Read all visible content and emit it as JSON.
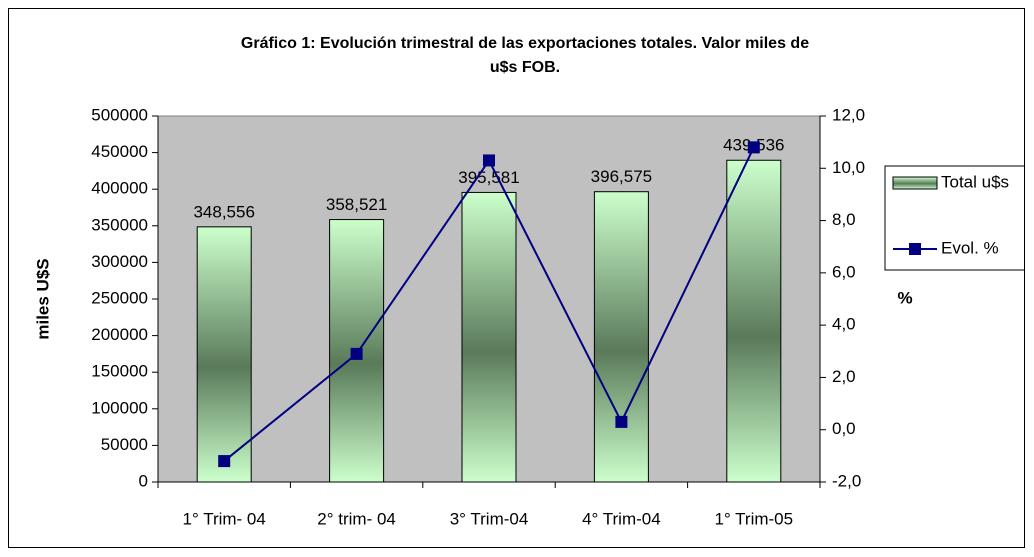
{
  "chart_data": {
    "type": "bar_line",
    "title": [
      "Gráfico 1: Evolución trimestral de las exportaciones totales. Valor miles de",
      "u$s FOB."
    ],
    "categories": [
      "1° Trim- 04",
      "2° trim- 04",
      "3° Trim-04",
      "4° Trim-04",
      "1° Trim-05"
    ],
    "series": [
      {
        "name": "Total u$s",
        "type": "bar",
        "color": "#ccffcc",
        "values": [
          348556,
          358521,
          395581,
          396575,
          439536
        ],
        "value_labels": [
          "348,556",
          "358,521",
          "395,581",
          "396,575",
          "439,536"
        ]
      },
      {
        "name": "Evol. %",
        "type": "line",
        "axis": "y2",
        "color": "#000080",
        "values": [
          -1.2,
          2.9,
          10.3,
          0.3,
          10.8
        ]
      }
    ],
    "ylabel": "miles U$S",
    "y2label": "%",
    "ylim": [
      0,
      500000
    ],
    "yticks": [
      0,
      50000,
      100000,
      150000,
      200000,
      250000,
      300000,
      350000,
      400000,
      450000,
      500000
    ],
    "y2lim": [
      -2,
      12
    ],
    "y2ticks": [
      {
        "value": -2,
        "label": "-2,0"
      },
      {
        "value": 0,
        "label": "0,0"
      },
      {
        "value": 2,
        "label": "2,0"
      },
      {
        "value": 4,
        "label": "4,0"
      },
      {
        "value": 6,
        "label": "6,0"
      },
      {
        "value": 8,
        "label": "8,0"
      },
      {
        "value": 10,
        "label": "10,0"
      },
      {
        "value": 12,
        "label": "12,0"
      }
    ],
    "plot_background": "#c0c0c0"
  }
}
